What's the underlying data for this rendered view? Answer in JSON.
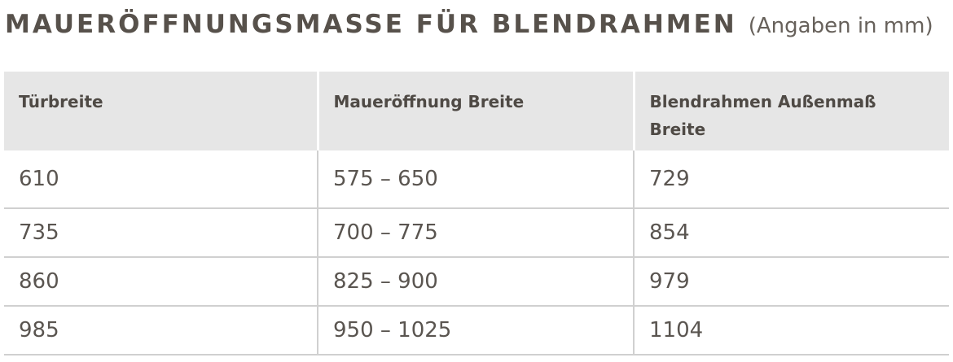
{
  "header": {
    "title": "MAUERÖFFNUNGSMASSE FÜR BLENDRAHMEN",
    "subtitle": "(Angaben in mm)"
  },
  "table": {
    "columns": [
      "Türbreite",
      "Maueröffnung Breite",
      "Blendrahmen Außenmaß Breite"
    ],
    "rows": [
      [
        610,
        "575 – 650",
        729
      ],
      [
        735,
        "700 – 775",
        854
      ],
      [
        860,
        "825 – 900",
        979
      ],
      [
        985,
        "950 – 1025",
        1104
      ]
    ]
  }
}
